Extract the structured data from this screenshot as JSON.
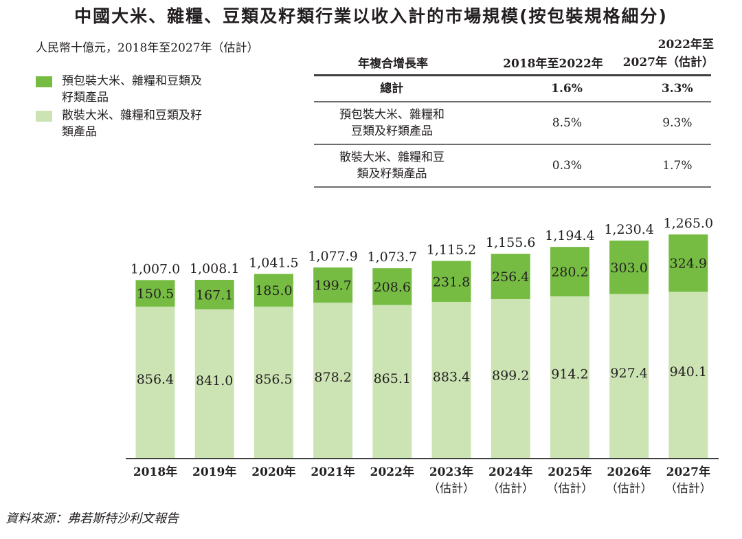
{
  "title": "中國大米、雜糧、豆類及籽類行業以收入計的市場規模(按包裝規格細分)",
  "unit_label": "人民幣十億元，2018年至2027年（估計）",
  "legend": [
    {
      "label": "預包裝大米、雜糧和豆類及籽類產品",
      "color": "#76bc43"
    },
    {
      "label": "散裝大米、雜糧和豆類及籽類產品",
      "color": "#cce4b4"
    }
  ],
  "cagr_table": {
    "header": {
      "label": "年複合增長率",
      "col1": "2018年至2022年",
      "col2_line1": "2022年至",
      "col2_line2": "2027年（估計）"
    },
    "rows": [
      {
        "label": "總計",
        "v1": "1.6%",
        "v2": "3.3%"
      },
      {
        "label": "預包裝大米、雜糧和豆類及籽類產品",
        "v1": "8.5%",
        "v2": "9.3%"
      },
      {
        "label": "散裝大米、雜糧和豆類及籽類產品",
        "v1": "0.3%",
        "v2": "1.7%"
      }
    ]
  },
  "chart_data": {
    "type": "bar",
    "stacked": true,
    "title": "中國大米、雜糧、豆類及籽類行業以收入計的市場規模(按包裝規格細分)",
    "ylabel": "人民幣十億元",
    "xlabel": "",
    "grid": false,
    "legend_position": "top-left",
    "categories": [
      "2018年",
      "2019年",
      "2020年",
      "2021年",
      "2022年",
      "2023年",
      "2024年",
      "2025年",
      "2026年",
      "2027年"
    ],
    "category_sublabels": [
      "",
      "",
      "",
      "",
      "",
      "（估計）",
      "（估計）",
      "（估計）",
      "（估計）",
      "（估計）"
    ],
    "series": [
      {
        "name": "散裝大米、雜糧和豆類及籽類產品",
        "color": "#cce4b4",
        "values": [
          856.4,
          841.0,
          856.5,
          878.2,
          865.1,
          883.4,
          899.2,
          914.2,
          927.4,
          940.1
        ]
      },
      {
        "name": "預包裝大米、雜糧和豆類及籽類產品",
        "color": "#76bc43",
        "values": [
          150.5,
          167.1,
          185.0,
          199.7,
          208.6,
          231.8,
          256.4,
          280.2,
          303.0,
          324.9
        ]
      }
    ],
    "totals": [
      "1,007.0",
      "1,008.1",
      "1,041.5",
      "1,077.9",
      "1,073.7",
      "1,115.2",
      "1,155.6",
      "1,194.4",
      "1,230.4",
      "1,265.0"
    ],
    "ylim": [
      0,
      1300
    ]
  },
  "source": "資料來源：弗若斯特沙利文報告"
}
